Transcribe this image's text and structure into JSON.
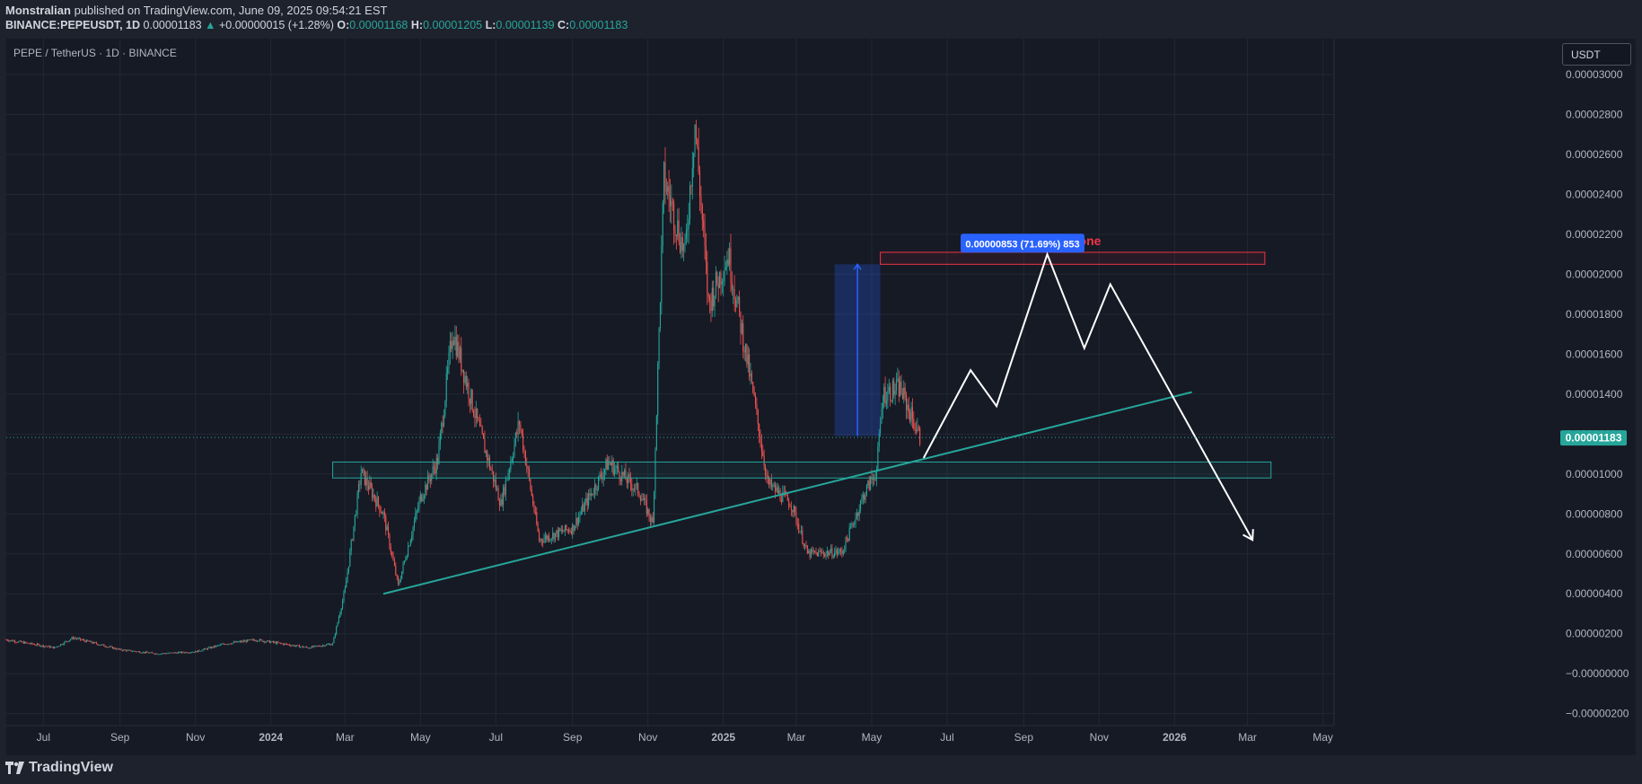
{
  "header": {
    "author": "Monstralian",
    "published": "published on TradingView.com, June 09, 2025 09:54:21 EST",
    "symbol": "BINANCE:PEPEUSDT, 1D",
    "last": "0.00001183",
    "arrow": "▲",
    "change": "+0.00000015 (+1.28%)",
    "o_label": "O:",
    "o": "0.00001168",
    "h_label": "H:",
    "h": "0.00001205",
    "l_label": "L:",
    "l": "0.00001139",
    "c_label": "C:",
    "c": "0.00001183"
  },
  "legend": "PEPE / TetherUS · 1D · BINANCE",
  "currency_button": "USDT",
  "footer": {
    "brand": "TradingView"
  },
  "colors": {
    "up": "#26a69a",
    "down": "#ef5350",
    "accent": "#2962ff",
    "trend": "#26a69a",
    "zone": "#f23645"
  },
  "chart_data": {
    "type": "candlestick",
    "symbol": "PEPE / TetherUS",
    "interval": "1D",
    "exchange": "BINANCE",
    "xlabel": "",
    "ylabel": "",
    "x_ticks": [
      "Jul",
      "Sep",
      "Nov",
      "2024",
      "Mar",
      "May",
      "Jul",
      "Sep",
      "Nov",
      "2025",
      "Mar",
      "May",
      "Jul",
      "Sep",
      "Nov",
      "2026",
      "Mar",
      "May"
    ],
    "y_ticks": [
      "0.00003000",
      "0.00002800",
      "0.00002600",
      "0.00002400",
      "0.00002200",
      "0.00002000",
      "0.00001800",
      "0.00001600",
      "0.00001400",
      "0.00001200",
      "0.00001000",
      "0.00000800",
      "0.00000600",
      "0.00000400",
      "0.00000200",
      "−0.00000000",
      "−0.00000200"
    ],
    "ylim": [
      -2.6e-06,
      3.18e-05
    ],
    "last_price_label": "0.00001183",
    "last_price": 1.183e-05,
    "grid": true,
    "price_path": [
      [
        "2023-06-01",
        1.7e-06
      ],
      [
        "2023-07-10",
        1.3e-06
      ],
      [
        "2023-07-25",
        1.8e-06
      ],
      [
        "2023-09-01",
        1.2e-06
      ],
      [
        "2023-10-01",
        1e-06
      ],
      [
        "2023-11-01",
        1.1e-06
      ],
      [
        "2023-11-25",
        1.5e-06
      ],
      [
        "2023-12-20",
        1.7e-06
      ],
      [
        "2024-01-31",
        1.3e-06
      ],
      [
        "2024-02-20",
        1.5e-06
      ],
      [
        "2024-03-01",
        4.2e-06
      ],
      [
        "2024-03-14",
        1.01e-05
      ],
      [
        "2024-04-01",
        8e-06
      ],
      [
        "2024-04-13",
        4.4e-06
      ],
      [
        "2024-05-01",
        8.8e-06
      ],
      [
        "2024-05-15",
        1.07e-05
      ],
      [
        "2024-05-27",
        1.72e-05
      ],
      [
        "2024-06-15",
        1.28e-05
      ],
      [
        "2024-07-05",
        8.5e-06
      ],
      [
        "2024-07-20",
        1.26e-05
      ],
      [
        "2024-08-05",
        6.7e-06
      ],
      [
        "2024-09-01",
        7.3e-06
      ],
      [
        "2024-09-30",
        1.06e-05
      ],
      [
        "2024-10-25",
        9.1e-06
      ],
      [
        "2024-11-05",
        7.5e-06
      ],
      [
        "2024-11-14",
        2.48e-05
      ],
      [
        "2024-12-01",
        2.1e-05
      ],
      [
        "2024-12-09",
        2.76e-05
      ],
      [
        "2024-12-20",
        1.85e-05
      ],
      [
        "2025-01-05",
        2.1e-05
      ],
      [
        "2025-01-25",
        1.4e-05
      ],
      [
        "2025-02-06",
        9.5e-06
      ],
      [
        "2025-02-25",
        8.5e-06
      ],
      [
        "2025-03-10",
        6e-06
      ],
      [
        "2025-04-07",
        6.1e-06
      ],
      [
        "2025-04-25",
        9e-06
      ],
      [
        "2025-05-05",
        1.02e-05
      ],
      [
        "2025-05-10",
        1.4e-05
      ],
      [
        "2025-05-24",
        1.43e-05
      ],
      [
        "2025-06-09",
        1.183e-05
      ]
    ],
    "annotations": {
      "measure_label": "0.00000853 (71.69%) 853",
      "measure_from": 1.19e-05,
      "measure_to": 2.05e-05,
      "distribution_zone_label": "Distribution zone",
      "distribution_zone": [
        2.05e-05,
        2.11e-05
      ],
      "support_zone": [
        9.8e-06,
        1.06e-05
      ],
      "trendline": [
        [
          "2024-04-01",
          4e-06
        ],
        [
          "2026-01-15",
          1.41e-05
        ]
      ],
      "projection_path": [
        [
          "2025-06-12",
          1.08e-05
        ],
        [
          "2025-07-20",
          1.52e-05
        ],
        [
          "2025-08-10",
          1.34e-05
        ],
        [
          "2025-09-20",
          2.1e-05
        ],
        [
          "2025-10-20",
          1.63e-05
        ],
        [
          "2025-11-10",
          1.95e-05
        ],
        [
          "2026-03-05",
          6.7e-06
        ]
      ]
    }
  }
}
